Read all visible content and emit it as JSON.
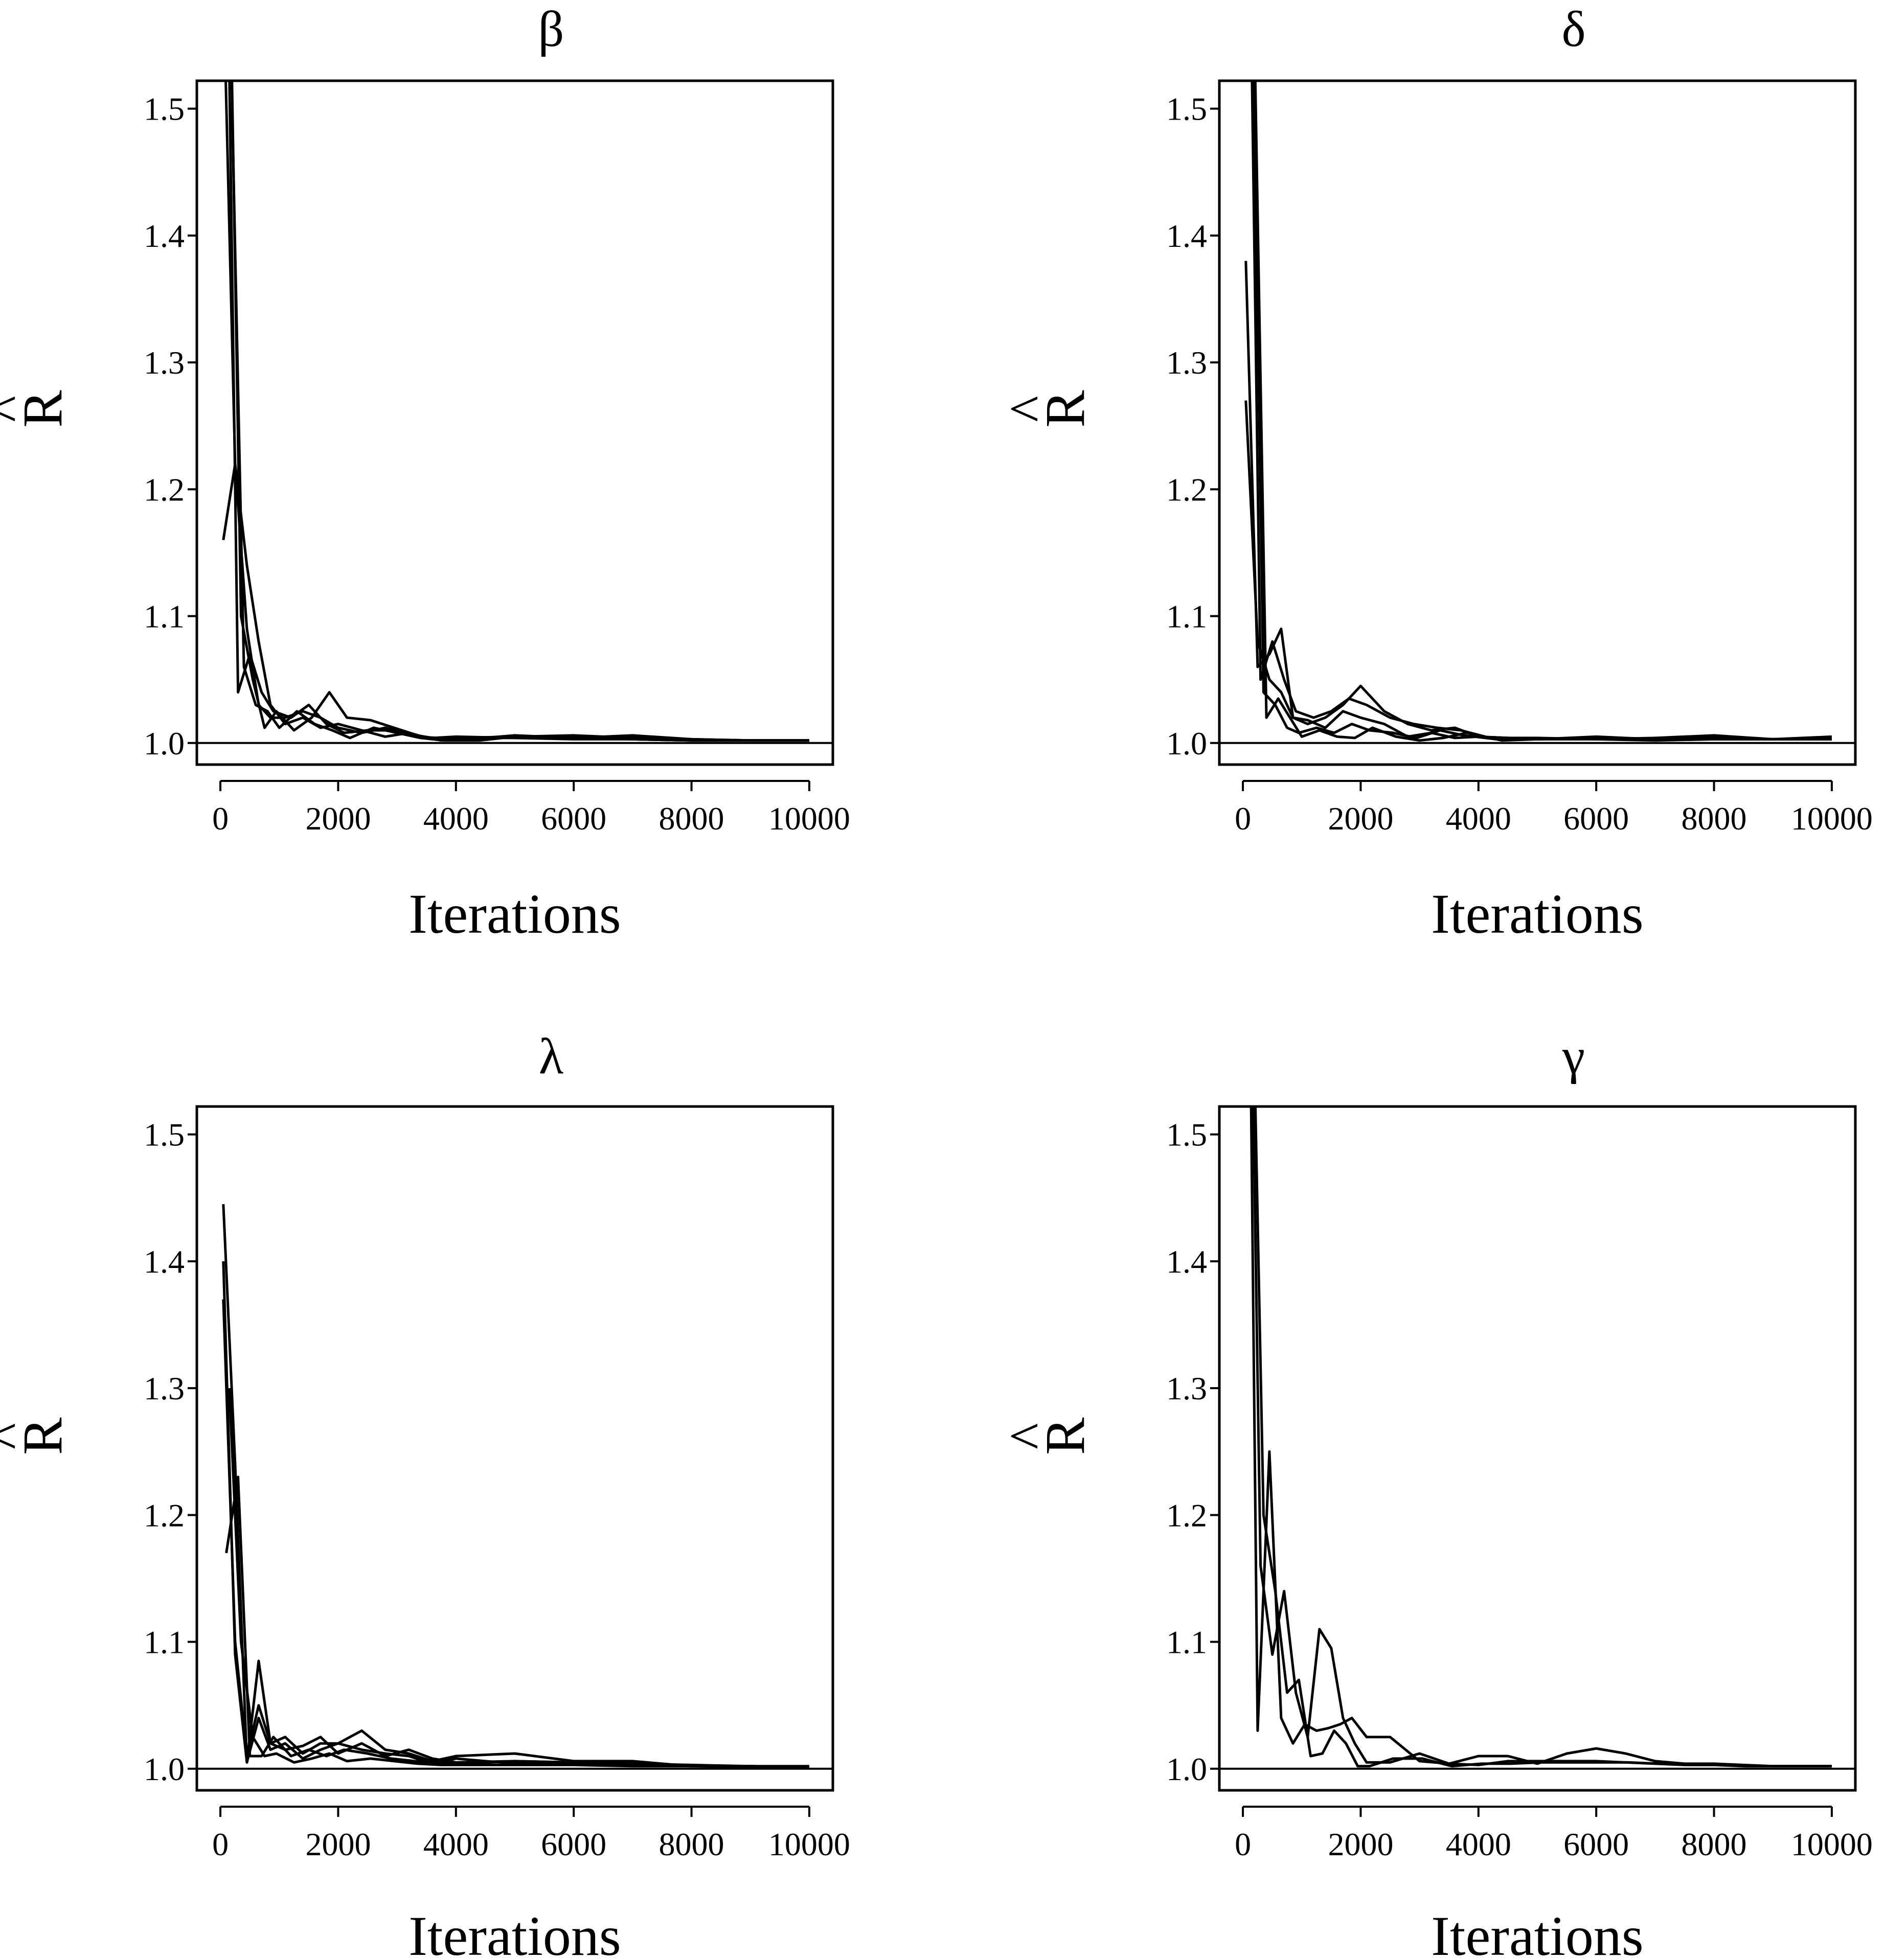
{
  "chart_data": [
    {
      "type": "line",
      "title": "β",
      "xlabel": "Iterations",
      "ylabel": "R",
      "ylabel_hat": "^",
      "xlim": [
        -400,
        10400
      ],
      "ylim": [
        0.983,
        1.522
      ],
      "xticks": [
        0,
        2000,
        4000,
        6000,
        8000,
        10000
      ],
      "yticks": [
        1.0,
        1.1,
        1.2,
        1.3,
        1.4,
        1.5
      ],
      "xtick_labels": [
        "0",
        "2000",
        "4000",
        "6000",
        "8000",
        "10000"
      ],
      "ytick_labels": [
        "1.0",
        "1.1",
        "1.2",
        "1.3",
        "1.4",
        "1.5"
      ],
      "reference_line": 1.0,
      "series": [
        {
          "x": [
            50,
            250,
            450,
            650,
            850,
            1100,
            1400,
            1700,
            2000,
            2400,
            2800,
            3200,
            3600,
            4000,
            5000,
            6000,
            7000,
            8000,
            9000,
            10000
          ],
          "y": [
            1.6,
            1.22,
            1.09,
            1.03,
            1.02,
            1.02,
            1.025,
            1.02,
            1.012,
            1.008,
            1.012,
            1.007,
            1.004,
            1.005,
            1.004,
            1.004,
            1.003,
            1.002,
            1.002,
            1.002
          ]
        },
        {
          "x": [
            50,
            250,
            450,
            650,
            850,
            1100,
            1400,
            1700,
            2000,
            2400,
            2800,
            3200,
            3600,
            4000,
            5000,
            6000,
            7000,
            8000,
            9000,
            10000
          ],
          "y": [
            1.16,
            1.22,
            1.14,
            1.08,
            1.03,
            1.015,
            1.02,
            1.012,
            1.015,
            1.01,
            1.005,
            1.008,
            1.003,
            1.004,
            1.005,
            1.006,
            1.004,
            1.003,
            1.002,
            1.002
          ]
        },
        {
          "x": [
            100,
            300,
            500,
            700,
            900,
            1200,
            1500,
            1800,
            2100,
            2500,
            2900,
            3300,
            3700,
            4200,
            5000,
            6000,
            7000,
            8000,
            9000,
            10000
          ],
          "y": [
            1.7,
            1.04,
            1.07,
            1.04,
            1.025,
            1.02,
            1.03,
            1.015,
            1.008,
            1.01,
            1.01,
            1.005,
            1.004,
            1.003,
            1.006,
            1.004,
            1.006,
            1.003,
            1.002,
            1.002
          ]
        },
        {
          "x": [
            150,
            350,
            550,
            750,
            950,
            1250,
            1550,
            1850,
            2150,
            2550,
            2950,
            3350,
            3750,
            4300,
            5000,
            6000,
            7000,
            8000,
            9000,
            10000
          ],
          "y": [
            1.65,
            1.1,
            1.05,
            1.012,
            1.025,
            1.01,
            1.02,
            1.04,
            1.02,
            1.018,
            1.012,
            1.006,
            1.002,
            1.004,
            1.004,
            1.003,
            1.003,
            1.002,
            1.002,
            1.002
          ]
        },
        {
          "x": [
            200,
            400,
            600,
            800,
            1000,
            1300,
            1600,
            1900,
            2200,
            2600,
            3000,
            3400,
            3800,
            4400,
            5000,
            6000,
            7000,
            8000,
            9000,
            10000
          ],
          "y": [
            1.5,
            1.06,
            1.03,
            1.025,
            1.012,
            1.025,
            1.015,
            1.01,
            1.004,
            1.012,
            1.008,
            1.004,
            1.002,
            1.002,
            1.005,
            1.005,
            1.003,
            1.002,
            1.002,
            1.002
          ]
        }
      ]
    },
    {
      "type": "line",
      "title": "δ",
      "xlabel": "Iterations",
      "ylabel": "R",
      "ylabel_hat": "^",
      "xlim": [
        -400,
        10400
      ],
      "ylim": [
        0.983,
        1.522
      ],
      "xticks": [
        0,
        2000,
        4000,
        6000,
        8000,
        10000
      ],
      "yticks": [
        1.0,
        1.1,
        1.2,
        1.3,
        1.4,
        1.5
      ],
      "xtick_labels": [
        "0",
        "2000",
        "4000",
        "6000",
        "8000",
        "10000"
      ],
      "ytick_labels": [
        "1.0",
        "1.1",
        "1.2",
        "1.3",
        "1.4",
        "1.5"
      ],
      "reference_line": 1.0,
      "series": [
        {
          "x": [
            50,
            250,
            450,
            650,
            850,
            1100,
            1400,
            1700,
            2000,
            2400,
            2800,
            3200,
            3600,
            4000,
            5000,
            6000,
            7000,
            8000,
            9000,
            10000
          ],
          "y": [
            1.38,
            1.06,
            1.07,
            1.09,
            1.02,
            1.015,
            1.02,
            1.03,
            1.045,
            1.025,
            1.015,
            1.01,
            1.012,
            1.005,
            1.003,
            1.005,
            1.003,
            1.004,
            1.003,
            1.005
          ]
        },
        {
          "x": [
            50,
            250,
            450,
            650,
            850,
            1100,
            1400,
            1700,
            2000,
            2400,
            2800,
            3200,
            3600,
            4000,
            5000,
            6000,
            7000,
            8000,
            9000,
            10000
          ],
          "y": [
            1.27,
            1.08,
            1.05,
            1.04,
            1.02,
            1.018,
            1.012,
            1.025,
            1.02,
            1.015,
            1.005,
            1.008,
            1.004,
            1.005,
            1.003,
            1.004,
            1.003,
            1.003,
            1.003,
            1.003
          ]
        },
        {
          "x": [
            100,
            300,
            500,
            700,
            900,
            1200,
            1500,
            1800,
            2100,
            2500,
            2900,
            3300,
            3700,
            4200,
            5000,
            6000,
            7000,
            8000,
            9000,
            10000
          ],
          "y": [
            1.7,
            1.05,
            1.08,
            1.05,
            1.025,
            1.02,
            1.025,
            1.035,
            1.03,
            1.02,
            1.015,
            1.012,
            1.01,
            1.004,
            1.004,
            1.003,
            1.004,
            1.006,
            1.003,
            1.003
          ]
        },
        {
          "x": [
            150,
            350,
            550,
            750,
            950,
            1250,
            1550,
            1850,
            2150,
            2550,
            2950,
            3350,
            3750,
            4300,
            5000,
            6000,
            7000,
            8000,
            9000,
            10000
          ],
          "y": [
            1.65,
            1.04,
            1.03,
            1.012,
            1.008,
            1.012,
            1.008,
            1.015,
            1.01,
            1.008,
            1.004,
            1.01,
            1.006,
            1.003,
            1.003,
            1.003,
            1.002,
            1.003,
            1.003,
            1.003
          ]
        },
        {
          "x": [
            200,
            400,
            600,
            800,
            1000,
            1300,
            1600,
            1900,
            2200,
            2600,
            3000,
            3400,
            3800,
            4400,
            5000,
            6000,
            7000,
            8000,
            9000,
            10000
          ],
          "y": [
            1.55,
            1.02,
            1.035,
            1.02,
            1.005,
            1.01,
            1.005,
            1.004,
            1.012,
            1.005,
            1.002,
            1.004,
            1.008,
            1.002,
            1.003,
            1.004,
            1.003,
            1.004,
            1.003,
            1.004
          ]
        }
      ]
    },
    {
      "type": "line",
      "title": "λ",
      "xlabel": "Iterations",
      "ylabel": "R",
      "ylabel_hat": "^",
      "xlim": [
        -400,
        10400
      ],
      "ylim": [
        0.983,
        1.522
      ],
      "xticks": [
        0,
        2000,
        4000,
        6000,
        8000,
        10000
      ],
      "yticks": [
        1.0,
        1.1,
        1.2,
        1.3,
        1.4,
        1.5
      ],
      "xtick_labels": [
        "0",
        "2000",
        "4000",
        "6000",
        "8000",
        "10000"
      ],
      "ytick_labels": [
        "1.0",
        "1.1",
        "1.2",
        "1.3",
        "1.4",
        "1.5"
      ],
      "reference_line": 1.0,
      "series": [
        {
          "x": [
            50,
            250,
            450,
            650,
            850,
            1100,
            1400,
            1700,
            2000,
            2400,
            2800,
            3200,
            3600,
            4000,
            5000,
            6000,
            7000,
            8000,
            9000,
            10000
          ],
          "y": [
            1.445,
            1.24,
            1.005,
            1.085,
            1.02,
            1.025,
            1.012,
            1.02,
            1.02,
            1.03,
            1.015,
            1.012,
            1.006,
            1.01,
            1.012,
            1.006,
            1.006,
            1.002,
            1.002,
            1.001
          ]
        },
        {
          "x": [
            50,
            250,
            450,
            650,
            850,
            1100,
            1400,
            1700,
            2000,
            2400,
            2800,
            3200,
            3600,
            4000,
            5000,
            6000,
            7000,
            8000,
            9000,
            10000
          ],
          "y": [
            1.37,
            1.1,
            1.01,
            1.05,
            1.02,
            1.015,
            1.018,
            1.025,
            1.012,
            1.02,
            1.01,
            1.015,
            1.008,
            1.005,
            1.006,
            1.005,
            1.004,
            1.003,
            1.002,
            1.002
          ]
        },
        {
          "x": [
            50,
            250,
            450,
            650,
            850,
            1100,
            1400,
            1700,
            2000,
            2400,
            2800,
            3200,
            3600,
            4000,
            5000,
            6000,
            7000,
            8000,
            9000,
            10000
          ],
          "y": [
            1.4,
            1.09,
            1.005,
            1.04,
            1.015,
            1.02,
            1.008,
            1.015,
            1.02,
            1.015,
            1.012,
            1.01,
            1.004,
            1.008,
            1.004,
            1.004,
            1.004,
            1.002,
            1.002,
            1.001
          ]
        },
        {
          "x": [
            100,
            300,
            500,
            700,
            900,
            1200,
            1500,
            1800,
            2100,
            2500,
            2900,
            3300,
            3700,
            4200,
            5000,
            6000,
            7000,
            8000,
            9000,
            10000
          ],
          "y": [
            1.17,
            1.23,
            1.01,
            1.01,
            1.025,
            1.01,
            1.015,
            1.01,
            1.015,
            1.012,
            1.008,
            1.006,
            1.005,
            1.004,
            1.006,
            1.005,
            1.003,
            1.002,
            1.002,
            1.001
          ]
        },
        {
          "x": [
            150,
            350,
            550,
            750,
            950,
            1250,
            1550,
            1850,
            2150,
            2550,
            2950,
            3350,
            3750,
            4300,
            5000,
            6000,
            7000,
            8000,
            9000,
            10000
          ],
          "y": [
            1.3,
            1.1,
            1.025,
            1.01,
            1.012,
            1.005,
            1.008,
            1.012,
            1.006,
            1.008,
            1.006,
            1.004,
            1.003,
            1.003,
            1.003,
            1.003,
            1.002,
            1.002,
            1.001,
            1.001
          ]
        }
      ]
    },
    {
      "type": "line",
      "title": "γ",
      "xlabel": "Iterations",
      "ylabel": "R",
      "ylabel_hat": "^",
      "xlim": [
        -400,
        10400
      ],
      "ylim": [
        0.983,
        1.522
      ],
      "xticks": [
        0,
        2000,
        4000,
        6000,
        8000,
        10000
      ],
      "yticks": [
        1.0,
        1.1,
        1.2,
        1.3,
        1.4,
        1.5
      ],
      "xtick_labels": [
        "0",
        "2000",
        "4000",
        "6000",
        "8000",
        "10000"
      ],
      "ytick_labels": [
        "1.0",
        "1.1",
        "1.2",
        "1.3",
        "1.4",
        "1.5"
      ],
      "reference_line": 1.0,
      "series": [
        {
          "x": [
            100,
            250,
            450,
            650,
            850,
            1050,
            1250,
            1450,
            1650,
            1850,
            2100,
            2500,
            3000,
            3500,
            4000,
            4500,
            5000,
            5500,
            6000,
            6500,
            7000,
            7500,
            8000,
            8500,
            9000,
            9500,
            10000
          ],
          "y": [
            1.7,
            1.03,
            1.25,
            1.04,
            1.02,
            1.035,
            1.03,
            1.032,
            1.035,
            1.04,
            1.025,
            1.025,
            1.006,
            1.004,
            1.01,
            1.01,
            1.004,
            1.012,
            1.016,
            1.012,
            1.006,
            1.004,
            1.004,
            1.003,
            1.002,
            1.002,
            1.002
          ]
        },
        {
          "x": [
            150,
            300,
            500,
            700,
            900,
            1100,
            1300,
            1500,
            1700,
            1900,
            2100,
            2500,
            3000,
            3500,
            4000,
            4500,
            5000,
            5500,
            6000,
            6500,
            7000,
            7500,
            8000,
            8500,
            9000,
            9500,
            10000
          ],
          "y": [
            1.6,
            1.16,
            1.09,
            1.14,
            1.06,
            1.025,
            1.11,
            1.095,
            1.04,
            1.02,
            1.005,
            1.005,
            1.012,
            1.004,
            1.003,
            1.006,
            1.006,
            1.006,
            1.006,
            1.005,
            1.004,
            1.003,
            1.003,
            1.002,
            1.002,
            1.002,
            1.002
          ]
        },
        {
          "x": [
            200,
            350,
            550,
            750,
            950,
            1150,
            1350,
            1550,
            1750,
            1950,
            2150,
            2550,
            3050,
            3550,
            4050,
            4550,
            5050,
            5550,
            6050,
            6550,
            7050,
            7550,
            8050,
            8550,
            9050,
            9550,
            10000
          ],
          "y": [
            1.55,
            1.2,
            1.14,
            1.06,
            1.07,
            1.01,
            1.012,
            1.03,
            1.02,
            1.002,
            1.002,
            1.008,
            1.008,
            1.002,
            1.004,
            1.004,
            1.005,
            1.005,
            1.005,
            1.005,
            1.004,
            1.003,
            1.003,
            1.002,
            1.002,
            1.002,
            1.002
          ]
        }
      ]
    }
  ]
}
